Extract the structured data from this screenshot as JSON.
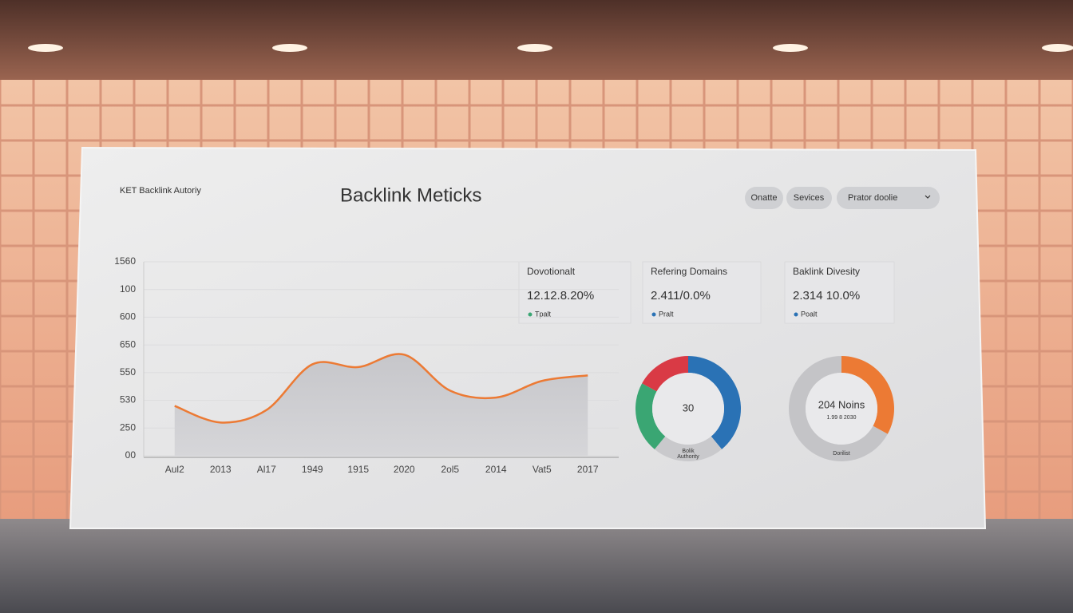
{
  "header": {
    "brand": "KET Backlink Autoriy",
    "title": "Backlink Meticks"
  },
  "nav": {
    "buttons": [
      "Onatte",
      "Sevices"
    ],
    "dropdown": "Prator doolie"
  },
  "cards": [
    {
      "title": "Dovotionalt",
      "value": "12.12.8.20%",
      "legend": "Tpalt",
      "color": "#3aa673"
    },
    {
      "title": "Refering Domains",
      "value": "2.411/0.0%",
      "legend": "Pralt",
      "color": "#2a72b5"
    },
    {
      "title": "Baklink Divesity",
      "value": "2.314 10.0%",
      "legend": "Poalt",
      "color": "#2a72b5"
    }
  ],
  "chart_data": [
    {
      "type": "area",
      "categories": [
        "Aul2",
        "2013",
        "Al17",
        "1949",
        "1915",
        "2020",
        "2ol5",
        "2014",
        "Vat5",
        "2017"
      ],
      "values": [
        1.8,
        1.2,
        1.65,
        3.3,
        3.2,
        3.65,
        2.35,
        2.1,
        2.7,
        2.9
      ],
      "color": "#ec7a34",
      "ylim": [
        0,
        7
      ],
      "yticks": [
        {
          "value": 0,
          "label": "00"
        },
        {
          "value": 1,
          "label": "250"
        },
        {
          "value": 2,
          "label": "530"
        },
        {
          "value": 3,
          "label": "550"
        },
        {
          "value": 4,
          "label": "650"
        },
        {
          "value": 5,
          "label": "600"
        },
        {
          "value": 6,
          "label": "100"
        },
        {
          "value": 7,
          "label": "1560"
        }
      ],
      "grid": true
    },
    {
      "type": "donut",
      "center_label": "30",
      "bottom_labels": [
        "Bolik",
        "Authority"
      ],
      "values": [
        39,
        22,
        22,
        17
      ],
      "colors": [
        "#2a72b5",
        "#c9c9cc",
        "#3aa673",
        "#d93a45"
      ]
    },
    {
      "type": "donut",
      "center_label": "204 Noins",
      "sub_label": "1.99 8 2030",
      "bottom_labels": [
        "Dorilist"
      ],
      "values": [
        33,
        67
      ],
      "colors": [
        "#ec7a34",
        "#c4c4c7"
      ]
    }
  ]
}
